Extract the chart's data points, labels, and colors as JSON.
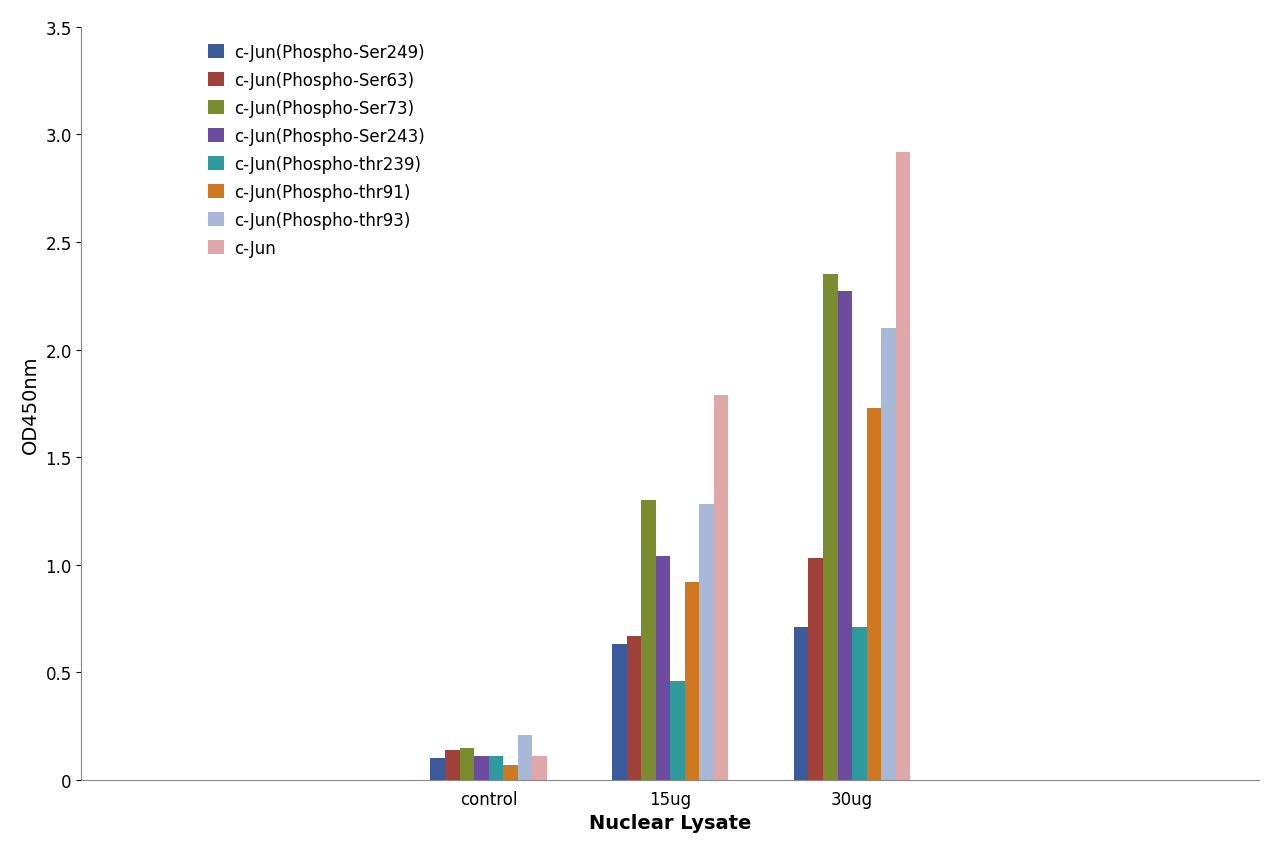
{
  "categories": [
    "control",
    "15ug",
    "30ug"
  ],
  "series": [
    {
      "label": "c-Jun(Phospho-Ser249)",
      "color": "#3B5A9A",
      "values": [
        0.1,
        0.63,
        0.71
      ]
    },
    {
      "label": "c-Jun(Phospho-Ser63)",
      "color": "#A0413A",
      "values": [
        0.14,
        0.67,
        1.03
      ]
    },
    {
      "label": "c-Jun(Phospho-Ser73)",
      "color": "#7A8C2E",
      "values": [
        0.15,
        1.3,
        2.35
      ]
    },
    {
      "label": "c-Jun(Phospho-Ser243)",
      "color": "#6B4C9E",
      "values": [
        0.11,
        1.04,
        2.27
      ]
    },
    {
      "label": "c-Jun(Phospho-thr239)",
      "color": "#2E9A9E",
      "values": [
        0.11,
        0.46,
        0.71
      ]
    },
    {
      "label": "c-Jun(Phospho-thr91)",
      "color": "#D07820",
      "values": [
        0.07,
        0.92,
        1.73
      ]
    },
    {
      "label": "c-Jun(Phospho-thr93)",
      "color": "#A8B8D8",
      "values": [
        0.21,
        1.28,
        2.1
      ]
    },
    {
      "label": "c-Jun",
      "color": "#DFA8A8",
      "values": [
        0.11,
        1.79,
        2.92
      ]
    }
  ],
  "ylabel": "OD450nm",
  "xlabel": "Nuclear Lysate",
  "ylim": [
    0,
    3.5
  ],
  "yticks": [
    0,
    0.5,
    1.0,
    1.5,
    2.0,
    2.5,
    3.0,
    3.5
  ],
  "background_color": "#ffffff",
  "legend_fontsize": 12,
  "axis_label_fontsize": 14,
  "tick_fontsize": 12
}
